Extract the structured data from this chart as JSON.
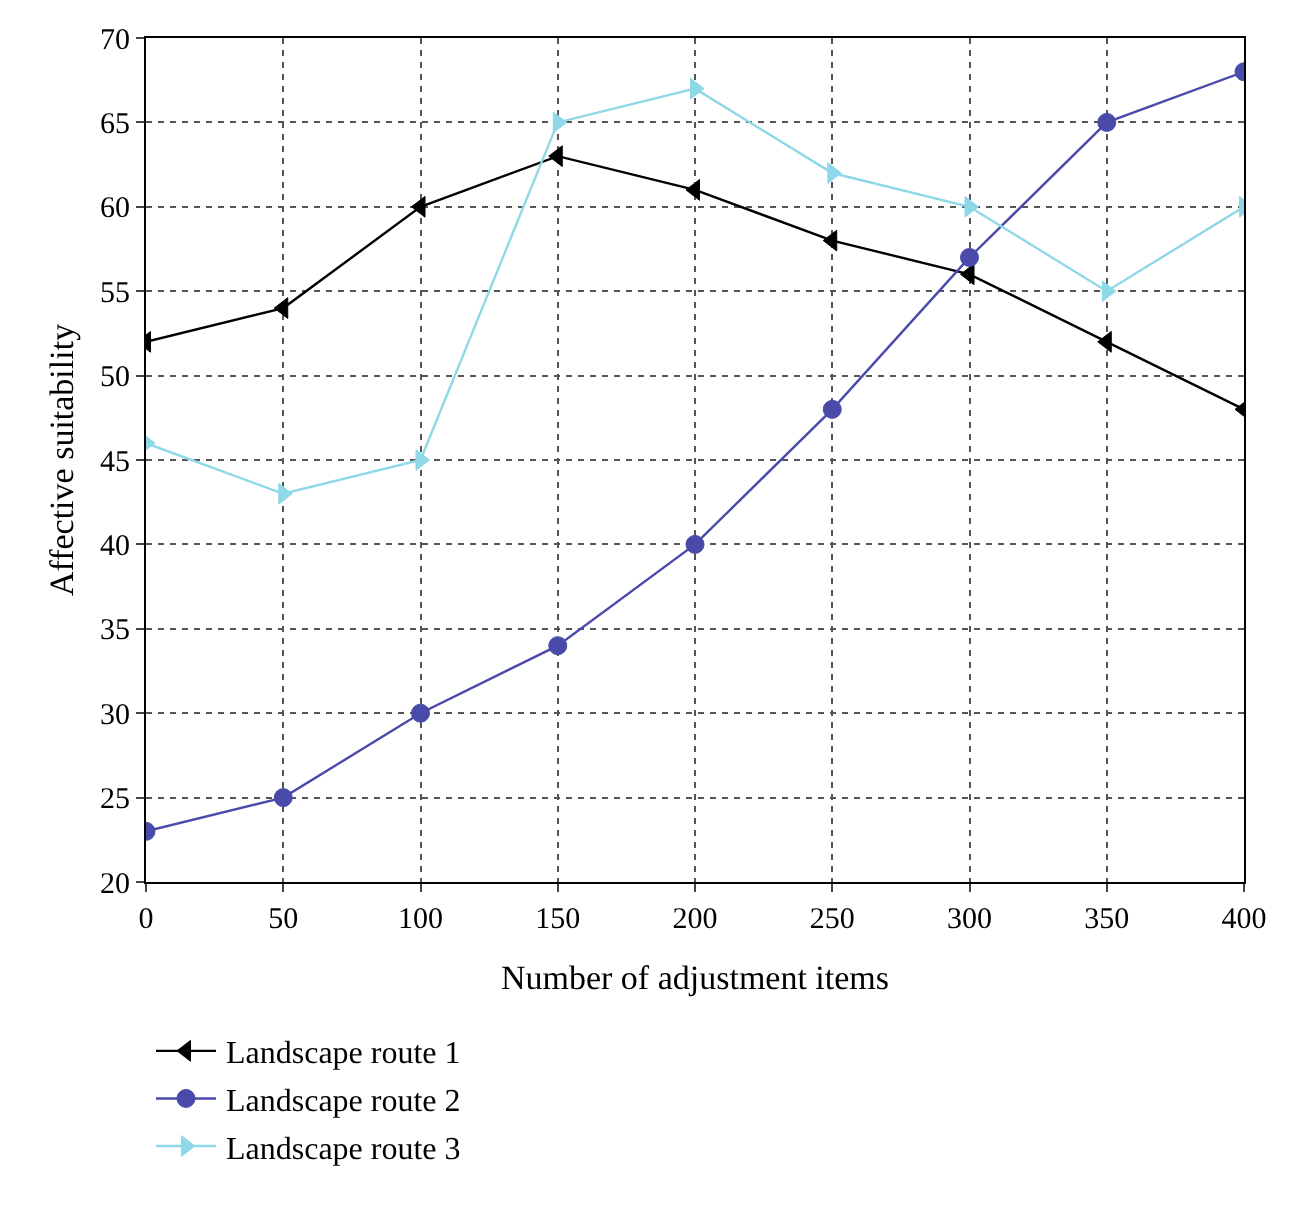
{
  "chart_data": {
    "type": "line",
    "xlabel": "Number of adjustment items",
    "ylabel": "Affective suitability",
    "x": [
      0,
      50,
      100,
      150,
      200,
      250,
      300,
      350,
      400
    ],
    "series": [
      {
        "name": "Landscape route 1",
        "color": "#000000",
        "marker": "triangle-left",
        "values": [
          52,
          54,
          60,
          63,
          61,
          58,
          56,
          52,
          48
        ]
      },
      {
        "name": "Landscape route 2",
        "color": "#4a4aaa",
        "marker": "circle",
        "values": [
          23,
          25,
          30,
          34,
          40,
          48,
          57,
          65,
          68
        ]
      },
      {
        "name": "Landscape route 3",
        "color": "#8fd8e8",
        "marker": "triangle-right",
        "values": [
          46,
          43,
          45,
          65,
          67,
          62,
          60,
          55,
          60
        ]
      }
    ],
    "xlim": [
      0,
      400
    ],
    "xticks": [
      0,
      50,
      100,
      150,
      200,
      250,
      300,
      350,
      400
    ],
    "ylim": [
      20,
      70
    ],
    "yticks": [
      20,
      25,
      30,
      35,
      40,
      45,
      50,
      55,
      60,
      65,
      70
    ],
    "grid": true,
    "legend": "bottom",
    "line_style": "solid"
  }
}
